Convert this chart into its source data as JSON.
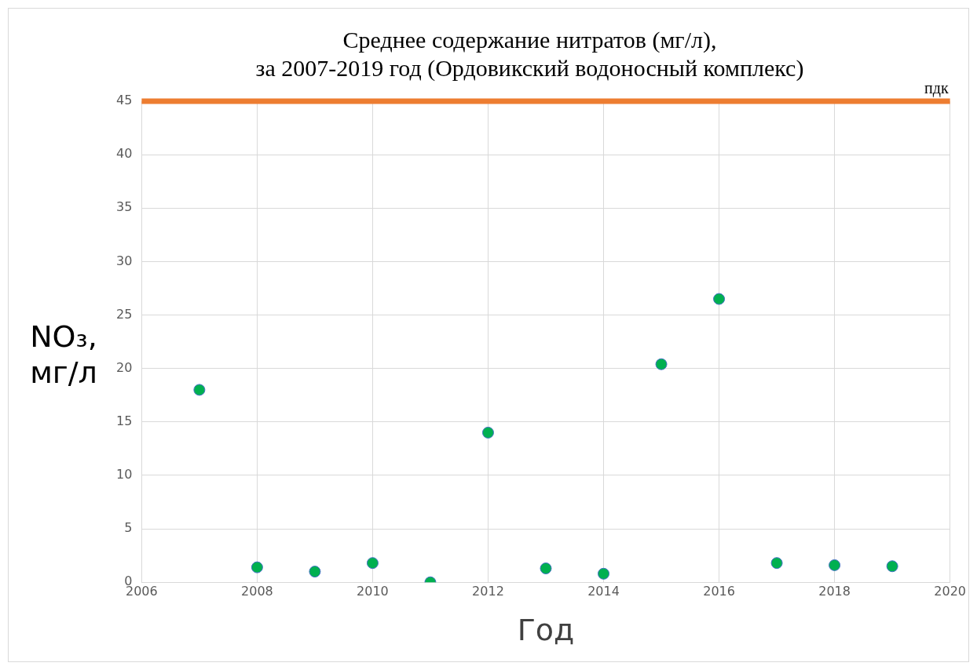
{
  "chart_data": {
    "type": "scatter",
    "title": "Среднее содержание нитратов (мг/л),\nза 2007-2019 год (Ордовикский водоносный комплекс)",
    "xlabel": "Год",
    "ylabel": "NO₃,\nмг/л",
    "x": [
      2007,
      2008,
      2009,
      2010,
      2011,
      2012,
      2013,
      2014,
      2015,
      2016,
      2017,
      2018,
      2019
    ],
    "series": [
      {
        "color": "#00b050",
        "values": [
          18,
          1.4,
          1.0,
          1.8,
          0,
          14,
          1.3,
          0.8,
          20.4,
          26.5,
          1.8,
          1.6,
          1.5
        ]
      }
    ],
    "xlim": [
      2006,
      2020
    ],
    "xticks": [
      2006,
      2008,
      2010,
      2012,
      2014,
      2016,
      2018,
      2020
    ],
    "ylim": [
      0,
      45
    ],
    "yticks": [
      0,
      5,
      10,
      15,
      20,
      25,
      30,
      35,
      40,
      45
    ],
    "ref_lines": [
      {
        "axis": "y",
        "value": 45,
        "label": "пдк",
        "color": "#ed7d31"
      }
    ],
    "grid": true,
    "legend": false,
    "marker": "circle"
  }
}
